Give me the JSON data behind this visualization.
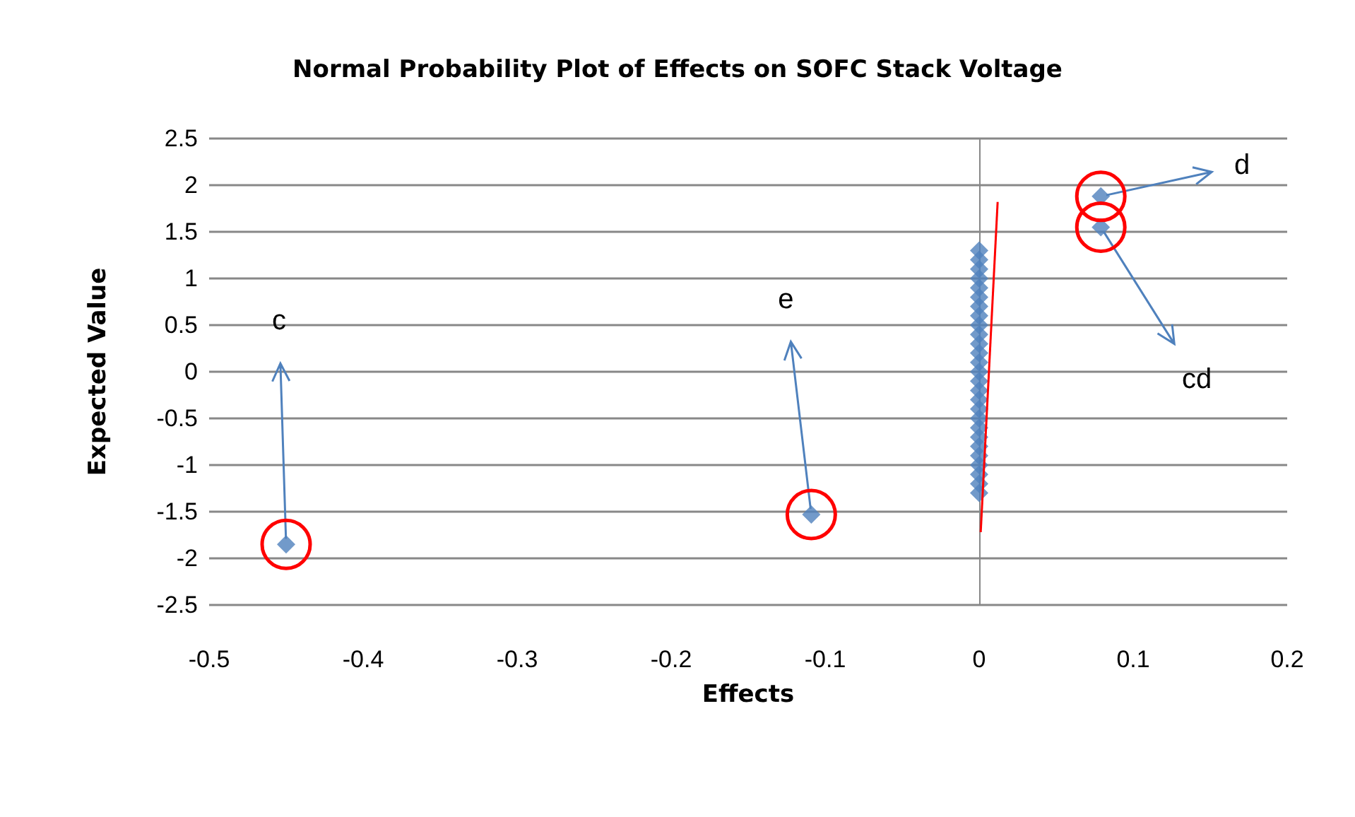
{
  "chart_data": {
    "type": "scatter",
    "title": "Normal Probability Plot of Effects on SOFC Stack Voltage",
    "xlabel": "Effects",
    "ylabel": "Expected Value",
    "xlim": [
      -0.5,
      0.2
    ],
    "xticks": [
      -0.5,
      -0.4,
      -0.3,
      -0.2,
      -0.1,
      0,
      0.1,
      0.2
    ],
    "ylim": [
      -2.5,
      2.5
    ],
    "yticks": [
      -2.5,
      -2,
      -1.5,
      -1,
      -0.5,
      0,
      0.5,
      1,
      1.5,
      2,
      2.5
    ],
    "grid": "y",
    "marker": "diamond",
    "series": [
      {
        "color": "#4f81bd",
        "x": [
          -0.45,
          -0.109,
          0,
          0,
          0,
          0,
          0,
          0,
          0,
          0,
          0,
          0,
          0,
          0,
          0,
          0,
          0,
          0,
          0,
          0,
          0,
          0,
          0,
          0,
          0,
          0,
          0,
          0,
          0,
          0.079,
          0.079
        ],
        "values": [
          -1.85,
          -1.53,
          -1.3,
          -1.2,
          -1.1,
          -1,
          -0.9,
          -0.8,
          -0.7,
          -0.6,
          -0.5,
          -0.4,
          -0.3,
          -0.2,
          -0.1,
          0,
          0.1,
          0.2,
          0.3,
          0.4,
          0.5,
          0.6,
          0.7,
          0.8,
          0.9,
          1,
          1.1,
          1.2,
          1.3,
          1.55,
          1.88
        ]
      },
      {
        "type": "line",
        "color": "#ff0000",
        "marker": "none",
        "x": [
          0.001,
          0.012
        ],
        "values": [
          -1.72,
          1.82
        ]
      }
    ],
    "annotations": [
      {
        "text": "c",
        "x": -0.45,
        "y": -1.85
      },
      {
        "text": "e",
        "x": -0.109,
        "y": -1.53
      },
      {
        "text": "d",
        "x": 0.079,
        "y": 1.88
      },
      {
        "text": "cd",
        "x": 0.079,
        "y": 1.55
      }
    ]
  }
}
